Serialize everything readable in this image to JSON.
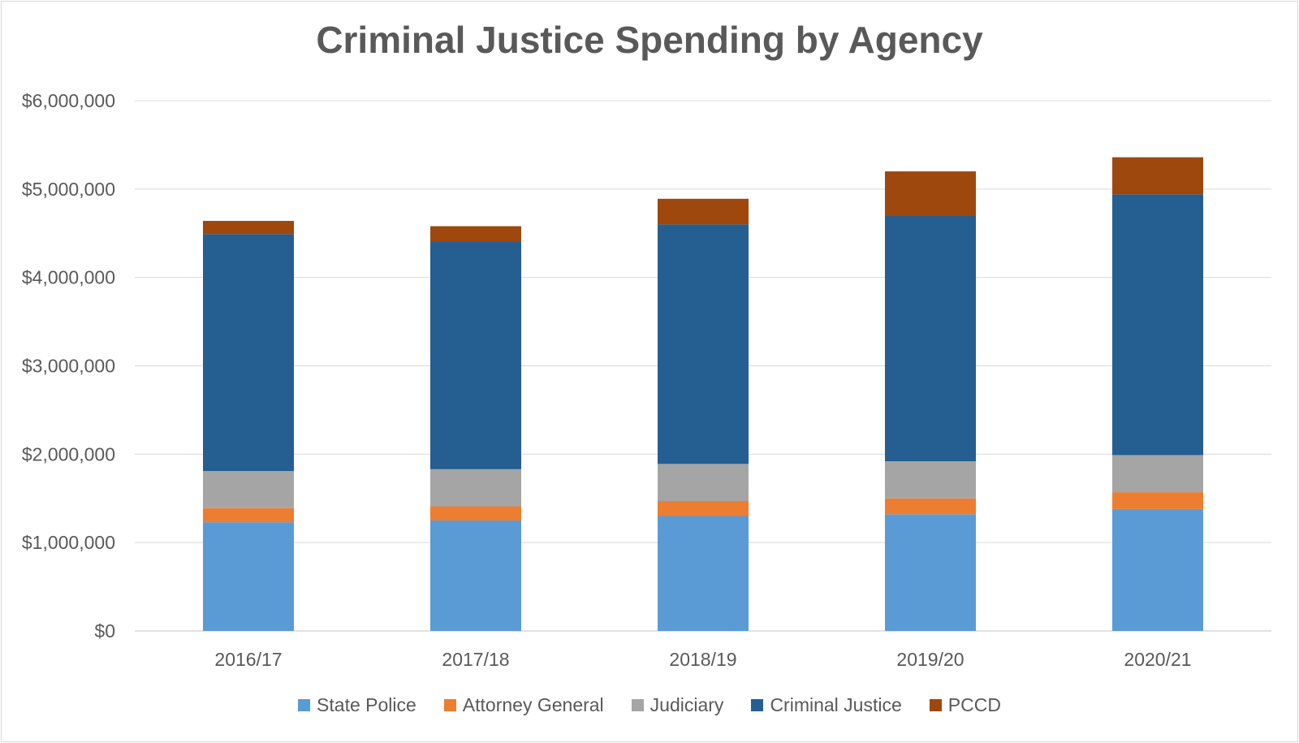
{
  "chart_data": {
    "type": "bar",
    "stacked": true,
    "title": "Criminal Justice Spending by Agency",
    "xlabel": "",
    "ylabel": "",
    "ylim": [
      0,
      6000000
    ],
    "ytick_values": [
      0,
      1000000,
      2000000,
      3000000,
      4000000,
      5000000,
      6000000
    ],
    "ytick_labels": [
      "$0",
      "$1,000,000",
      "$2,000,000",
      "$3,000,000",
      "$4,000,000",
      "$5,000,000",
      "$6,000,000"
    ],
    "grid": true,
    "legend_position": "bottom",
    "categories": [
      "2016/17",
      "2017/18",
      "2018/19",
      "2019/20",
      "2020/21"
    ],
    "series": [
      {
        "name": "State Police",
        "color": "#5b9bd5",
        "values": [
          1230000,
          1250000,
          1300000,
          1320000,
          1380000
        ]
      },
      {
        "name": "Attorney General",
        "color": "#ed7d31",
        "values": [
          160000,
          160000,
          170000,
          180000,
          190000
        ]
      },
      {
        "name": "Judiciary",
        "color": "#a5a5a5",
        "values": [
          420000,
          420000,
          420000,
          420000,
          420000
        ]
      },
      {
        "name": "Criminal Justice",
        "color": "#255e91",
        "values": [
          2680000,
          2580000,
          2710000,
          2780000,
          2950000
        ]
      },
      {
        "name": "PCCD",
        "color": "#9e480e",
        "values": [
          150000,
          170000,
          290000,
          500000,
          420000
        ]
      }
    ]
  }
}
